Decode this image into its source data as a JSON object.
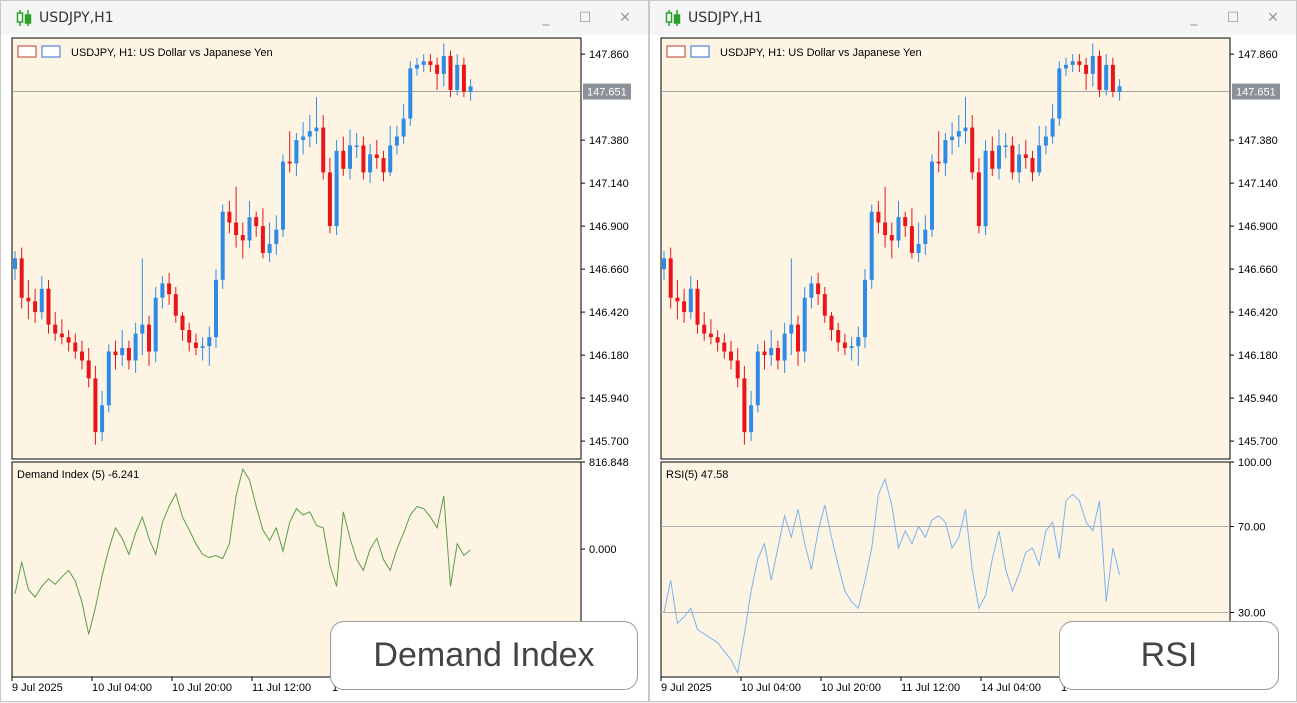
{
  "colors": {
    "background": "#fdf4e3",
    "bull": "#2f8be6",
    "bear": "#e8151b",
    "demand": "#5a9f46",
    "rsi": "#7db3ef",
    "grid": "#999999",
    "price_tag": "#8d9198"
  },
  "icons": {
    "window": "candlestick-icon",
    "header": "chart-settings-icon"
  },
  "window_controls": {
    "minimize": "_",
    "maximize": "☐",
    "close": "✕"
  },
  "windows": [
    {
      "title": "USDJPY,H1",
      "chart_header": "USDJPY, H1:  US Dollar vs Japanese Yen",
      "indicator_label": "Demand Index (5) -6.241",
      "indicator_ticks": [
        "816.848",
        "0.000"
      ],
      "overlay_label": "Demand Index",
      "x_labels": [
        "9 Jul 2025",
        "10 Jul 04:00",
        "10 Jul 20:00",
        "11 Jul 12:00",
        "1"
      ]
    },
    {
      "title": "USDJPY,H1",
      "chart_header": "USDJPY, H1:  US Dollar vs Japanese Yen",
      "indicator_label": "RSI(5) 47.58",
      "indicator_ticks": [
        "100.00",
        "70.00",
        "30.00"
      ],
      "overlay_label": "RSI",
      "x_labels": [
        "9 Jul 2025",
        "10 Jul 04:00",
        "10 Jul 20:00",
        "11 Jul 12:00",
        "14 Jul 04:00",
        "1"
      ]
    }
  ],
  "price_axis": {
    "ticks": [
      "147.860",
      "147.380",
      "147.140",
      "146.900",
      "146.660",
      "146.420",
      "146.180",
      "145.940",
      "145.700"
    ],
    "current_price": "147.651"
  },
  "chart_data": [
    {
      "type": "candlestick",
      "title": "USDJPY, H1:  US Dollar vs Japanese Yen",
      "ylim": [
        145.6,
        147.95
      ],
      "open": [
        146.66,
        146.72,
        146.5,
        146.48,
        146.42,
        146.55,
        146.35,
        146.3,
        146.28,
        146.25,
        146.2,
        146.15,
        146.05,
        145.75,
        145.9,
        146.2,
        146.18,
        146.22,
        146.15,
        146.3,
        146.35,
        146.2,
        146.5,
        146.58,
        146.52,
        146.4,
        146.32,
        146.25,
        146.22,
        146.23,
        146.28,
        146.6,
        146.98,
        146.92,
        146.85,
        146.82,
        146.95,
        146.9,
        146.75,
        146.8,
        146.88,
        147.26,
        147.25,
        147.38,
        147.4,
        147.43,
        147.45,
        147.2,
        146.9,
        147.32,
        147.22,
        147.35,
        147.35,
        147.2,
        147.3,
        147.28,
        147.2,
        147.35,
        147.4,
        147.5,
        147.78,
        147.8,
        147.82,
        147.8,
        147.75,
        147.85,
        147.66,
        147.8,
        147.65
      ],
      "close": [
        146.72,
        146.5,
        146.48,
        146.42,
        146.55,
        146.35,
        146.3,
        146.28,
        146.25,
        146.2,
        146.15,
        146.05,
        145.75,
        145.9,
        146.2,
        146.18,
        146.22,
        146.15,
        146.3,
        146.35,
        146.2,
        146.5,
        146.58,
        146.52,
        146.4,
        146.32,
        146.25,
        146.22,
        146.23,
        146.28,
        146.6,
        146.98,
        146.92,
        146.85,
        146.82,
        146.95,
        146.9,
        146.75,
        146.8,
        146.88,
        147.26,
        147.25,
        147.38,
        147.4,
        147.43,
        147.45,
        147.2,
        146.9,
        147.32,
        147.22,
        147.35,
        147.35,
        147.2,
        147.3,
        147.28,
        147.2,
        147.35,
        147.4,
        147.5,
        147.78,
        147.8,
        147.82,
        147.8,
        147.75,
        147.85,
        147.66,
        147.8,
        147.65,
        147.68
      ],
      "high": [
        146.76,
        146.78,
        146.6,
        146.55,
        146.62,
        146.6,
        146.42,
        146.38,
        146.32,
        146.3,
        146.26,
        146.22,
        146.12,
        145.98,
        146.24,
        146.26,
        146.32,
        146.26,
        146.36,
        146.72,
        146.4,
        146.56,
        146.62,
        146.64,
        146.56,
        146.42,
        146.36,
        146.3,
        146.28,
        146.34,
        146.66,
        147.02,
        147.04,
        147.12,
        146.92,
        147.04,
        146.98,
        147.0,
        146.92,
        146.96,
        147.3,
        147.43,
        147.42,
        147.48,
        147.52,
        147.62,
        147.52,
        147.28,
        147.38,
        147.4,
        147.44,
        147.42,
        147.4,
        147.36,
        147.38,
        147.32,
        147.46,
        147.46,
        147.58,
        147.82,
        147.84,
        147.86,
        147.86,
        147.84,
        147.92,
        147.88,
        147.86,
        147.84,
        147.72
      ],
      "low": [
        146.6,
        146.44,
        146.38,
        146.36,
        146.38,
        146.3,
        146.26,
        146.24,
        146.2,
        146.16,
        146.1,
        146.0,
        145.68,
        145.7,
        145.86,
        146.1,
        146.12,
        146.1,
        146.08,
        146.18,
        146.12,
        146.14,
        146.44,
        146.46,
        146.36,
        146.26,
        146.2,
        146.18,
        146.15,
        146.12,
        146.22,
        146.55,
        146.86,
        146.78,
        146.72,
        146.78,
        146.84,
        146.72,
        146.7,
        146.74,
        146.84,
        147.2,
        147.18,
        147.3,
        147.34,
        147.36,
        147.16,
        146.86,
        146.85,
        147.18,
        147.16,
        147.28,
        147.16,
        147.14,
        147.22,
        147.15,
        147.18,
        147.3,
        147.36,
        147.46,
        147.74,
        147.76,
        147.76,
        147.66,
        147.68,
        147.62,
        147.63,
        147.62,
        147.6
      ]
    },
    {
      "type": "line",
      "title": "Demand Index (5) -6.241",
      "ylim": [
        -1200,
        816.848
      ],
      "values": [
        -420,
        -120,
        -380,
        -450,
        -350,
        -280,
        -330,
        -260,
        -200,
        -300,
        -500,
        -800,
        -550,
        -250,
        0,
        200,
        100,
        -50,
        150,
        300,
        100,
        -50,
        250,
        400,
        520,
        300,
        180,
        50,
        -50,
        -80,
        -60,
        -90,
        50,
        500,
        750,
        650,
        400,
        180,
        80,
        200,
        -20,
        250,
        380,
        320,
        350,
        220,
        200,
        -150,
        -350,
        350,
        100,
        -100,
        -200,
        0,
        100,
        -100,
        -200,
        0,
        150,
        320,
        400,
        380,
        300,
        200,
        500,
        -350,
        50,
        -60,
        -6.241
      ]
    },
    {
      "type": "line",
      "title": "RSI(5) 47.58",
      "ylim": [
        0,
        100
      ],
      "values": [
        30,
        45,
        25,
        28,
        32,
        22,
        20,
        18,
        16,
        12,
        8,
        2,
        20,
        40,
        55,
        62,
        45,
        60,
        75,
        65,
        78,
        62,
        50,
        68,
        80,
        65,
        52,
        40,
        35,
        32,
        45,
        60,
        85,
        92,
        80,
        60,
        68,
        62,
        70,
        65,
        73,
        75,
        72,
        60,
        65,
        78,
        50,
        32,
        38,
        55,
        68,
        50,
        40,
        48,
        58,
        60,
        52,
        68,
        72,
        55,
        82,
        85,
        82,
        72,
        68,
        82,
        35,
        60,
        47.58
      ]
    }
  ]
}
